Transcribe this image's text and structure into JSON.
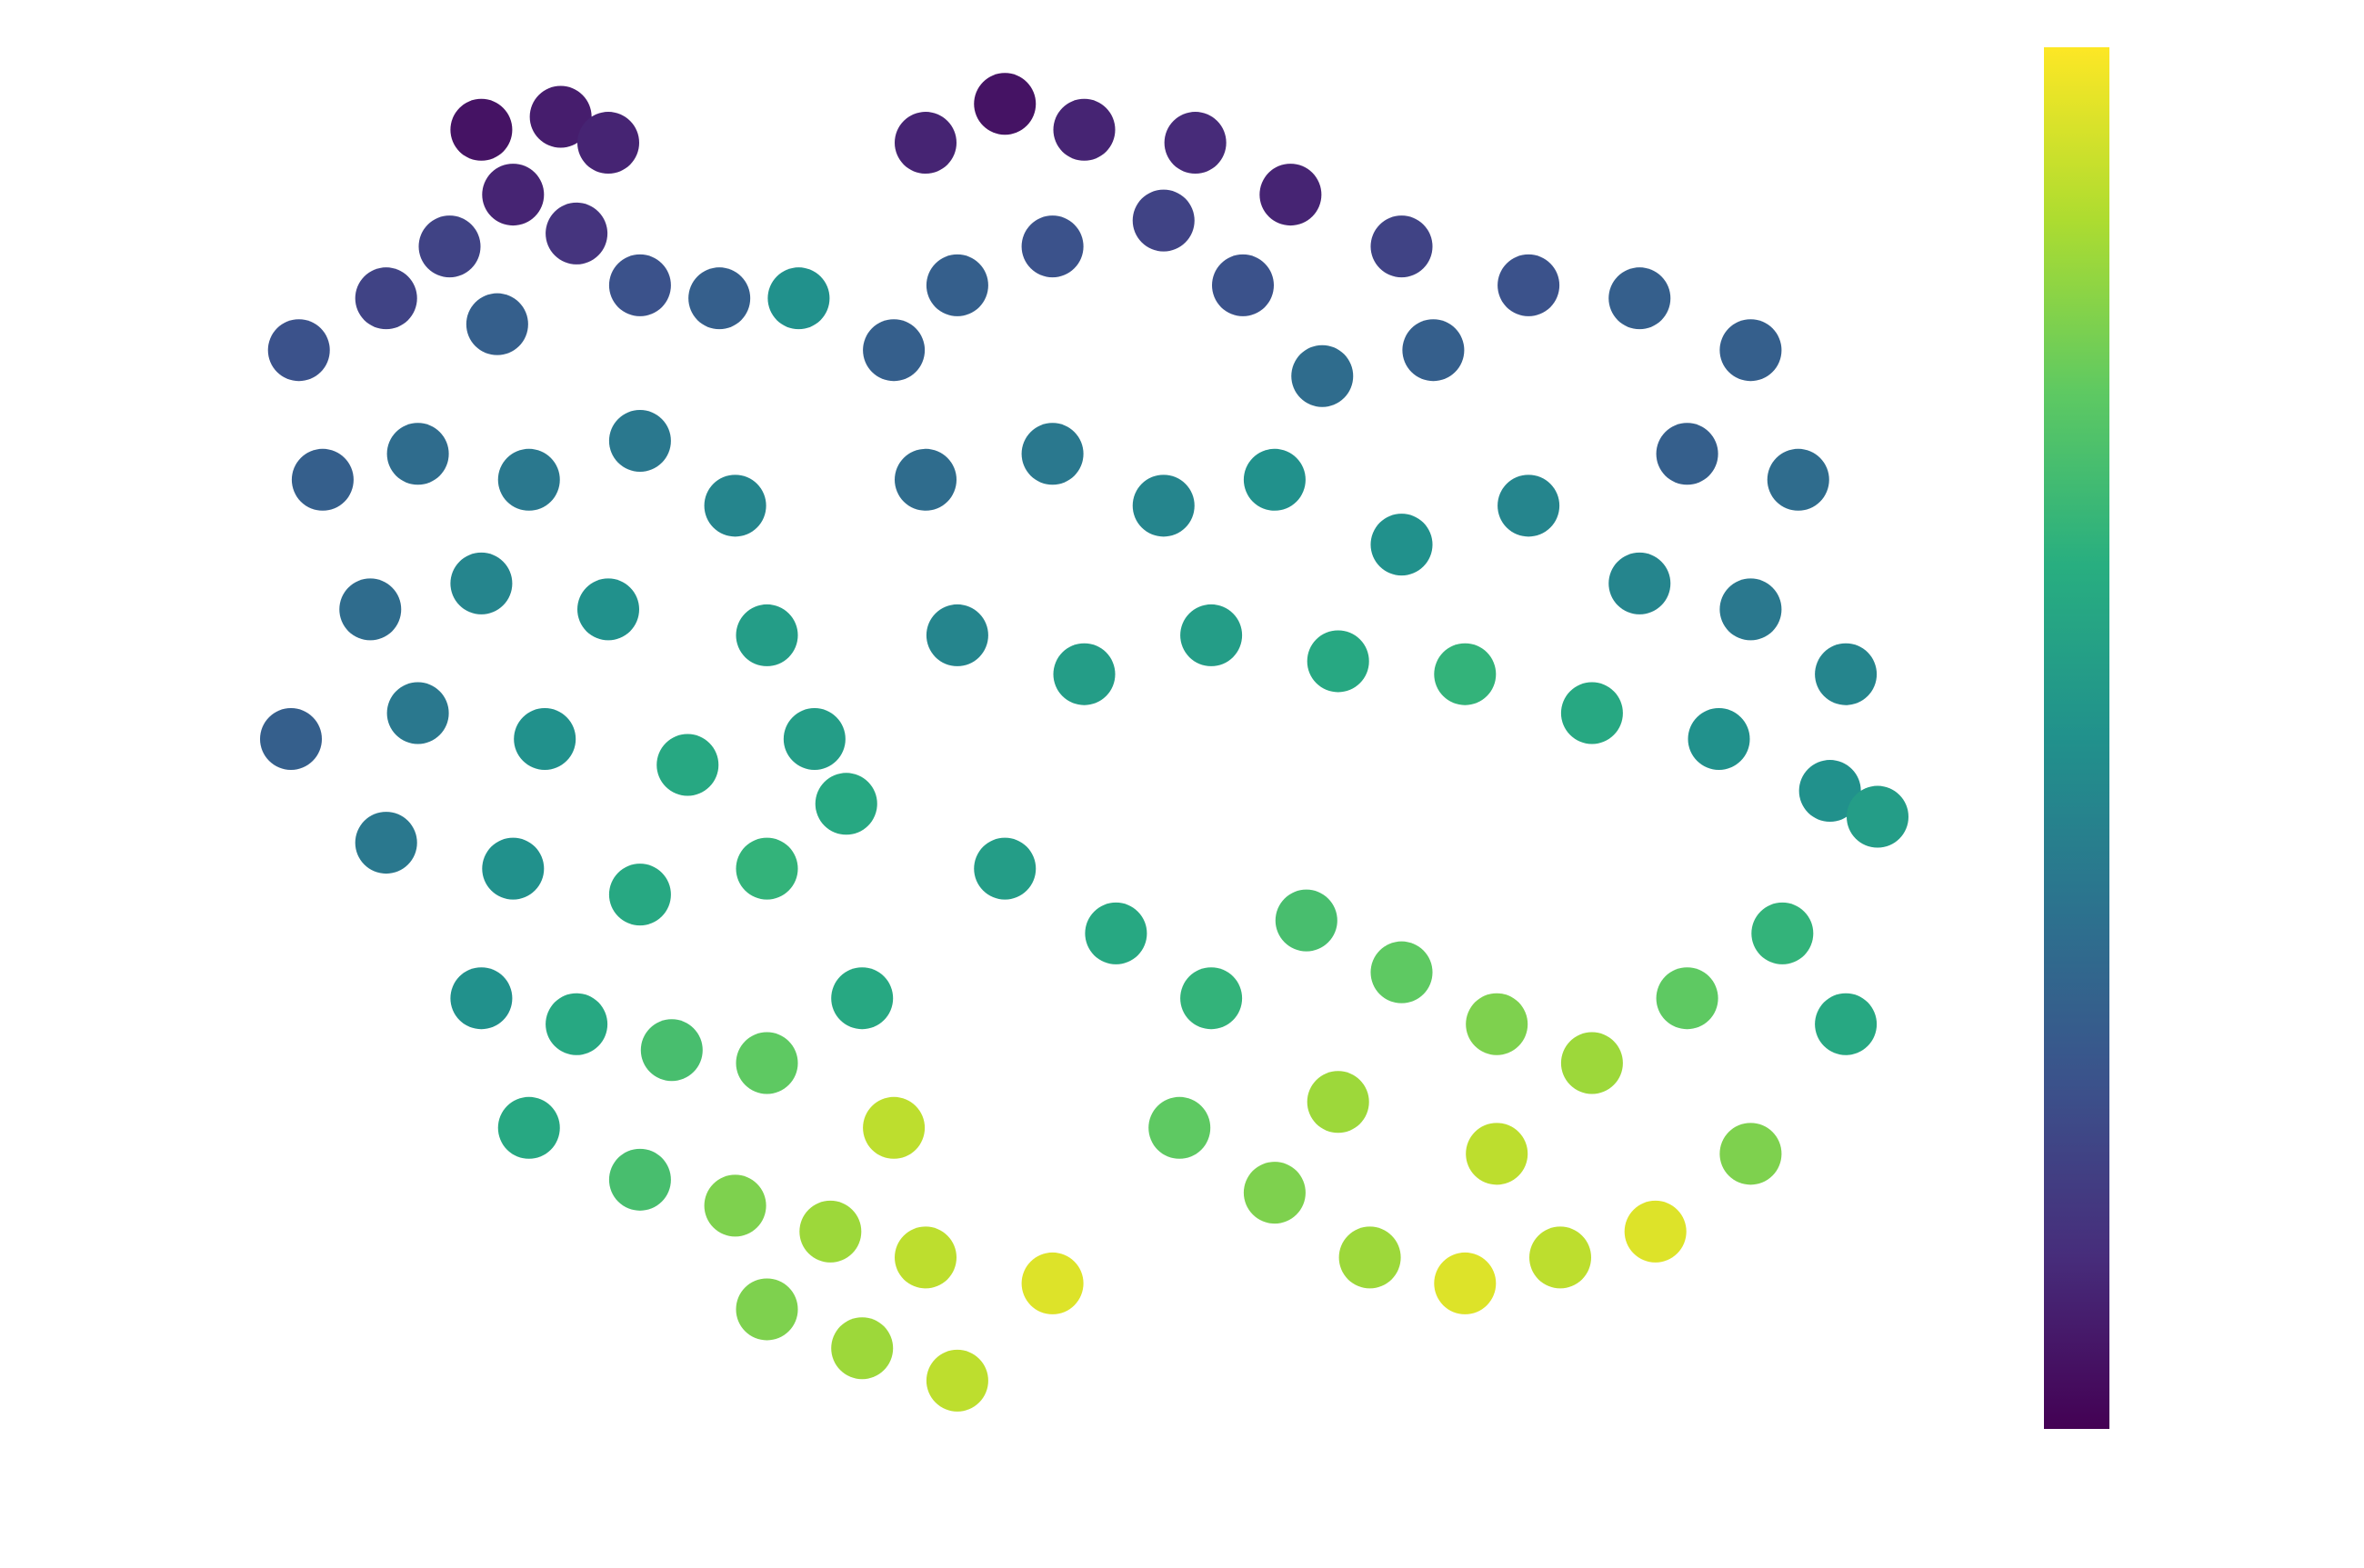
{
  "chart_data": {
    "type": "scatter",
    "colormap": "viridis",
    "colorbar": true,
    "clim": [
      0,
      1
    ],
    "xlim": [
      0,
      100
    ],
    "ylim": [
      0,
      100
    ],
    "x": [
      12,
      17,
      20,
      14,
      10,
      18,
      22,
      6,
      0.5,
      13,
      27,
      45,
      40,
      50,
      57,
      63,
      70,
      78,
      85,
      92,
      55,
      48,
      42,
      60,
      72,
      38,
      65,
      88,
      95,
      32,
      2,
      8,
      15,
      22,
      28,
      5,
      12,
      20,
      30,
      0,
      8,
      16,
      25,
      33,
      6,
      14,
      22,
      30,
      40,
      48,
      55,
      62,
      70,
      78,
      85,
      92,
      98,
      42,
      50,
      58,
      66,
      74,
      82,
      90,
      97,
      100,
      12,
      18,
      24,
      30,
      36,
      15,
      22,
      28,
      34,
      40,
      30,
      36,
      42,
      48,
      38,
      52,
      58,
      64,
      70,
      76,
      82,
      88,
      94,
      56,
      62,
      68,
      74,
      80,
      86,
      92,
      98,
      76,
      66,
      45,
      35
    ],
    "y": [
      97,
      98,
      96,
      92,
      88,
      89,
      85,
      84,
      80,
      82,
      84,
      99,
      96,
      97,
      96,
      92,
      88,
      85,
      84,
      80,
      90,
      88,
      85,
      85,
      80,
      80,
      78,
      72,
      70,
      84,
      70,
      72,
      70,
      73,
      68,
      60,
      62,
      60,
      58,
      50,
      52,
      50,
      48,
      50,
      42,
      40,
      38,
      40,
      70,
      72,
      68,
      70,
      65,
      68,
      62,
      60,
      55,
      58,
      55,
      58,
      56,
      55,
      52,
      50,
      46,
      44,
      30,
      28,
      26,
      25,
      30,
      20,
      16,
      14,
      12,
      10,
      6,
      3,
      0.5,
      8,
      20,
      35,
      30,
      36,
      32,
      28,
      25,
      30,
      35,
      20,
      15,
      10,
      8,
      10,
      12,
      18,
      28,
      18,
      22,
      40,
      45
    ],
    "c": [
      0.05,
      0.08,
      0.1,
      0.1,
      0.2,
      0.15,
      0.25,
      0.2,
      0.25,
      0.3,
      0.3,
      0.05,
      0.1,
      0.1,
      0.12,
      0.1,
      0.2,
      0.25,
      0.3,
      0.3,
      0.2,
      0.25,
      0.3,
      0.25,
      0.3,
      0.3,
      0.35,
      0.3,
      0.35,
      0.5,
      0.3,
      0.35,
      0.4,
      0.4,
      0.45,
      0.35,
      0.45,
      0.5,
      0.55,
      0.3,
      0.4,
      0.5,
      0.6,
      0.55,
      0.4,
      0.5,
      0.6,
      0.65,
      0.35,
      0.4,
      0.45,
      0.5,
      0.5,
      0.45,
      0.45,
      0.4,
      0.45,
      0.45,
      0.55,
      0.55,
      0.6,
      0.65,
      0.6,
      0.5,
      0.5,
      0.55,
      0.5,
      0.6,
      0.7,
      0.75,
      0.6,
      0.6,
      0.7,
      0.8,
      0.85,
      0.9,
      0.8,
      0.85,
      0.9,
      0.95,
      0.9,
      0.6,
      0.65,
      0.7,
      0.75,
      0.8,
      0.85,
      0.75,
      0.65,
      0.75,
      0.8,
      0.85,
      0.95,
      0.9,
      0.95,
      0.8,
      0.6,
      0.9,
      0.85,
      0.55,
      0.6
    ]
  }
}
